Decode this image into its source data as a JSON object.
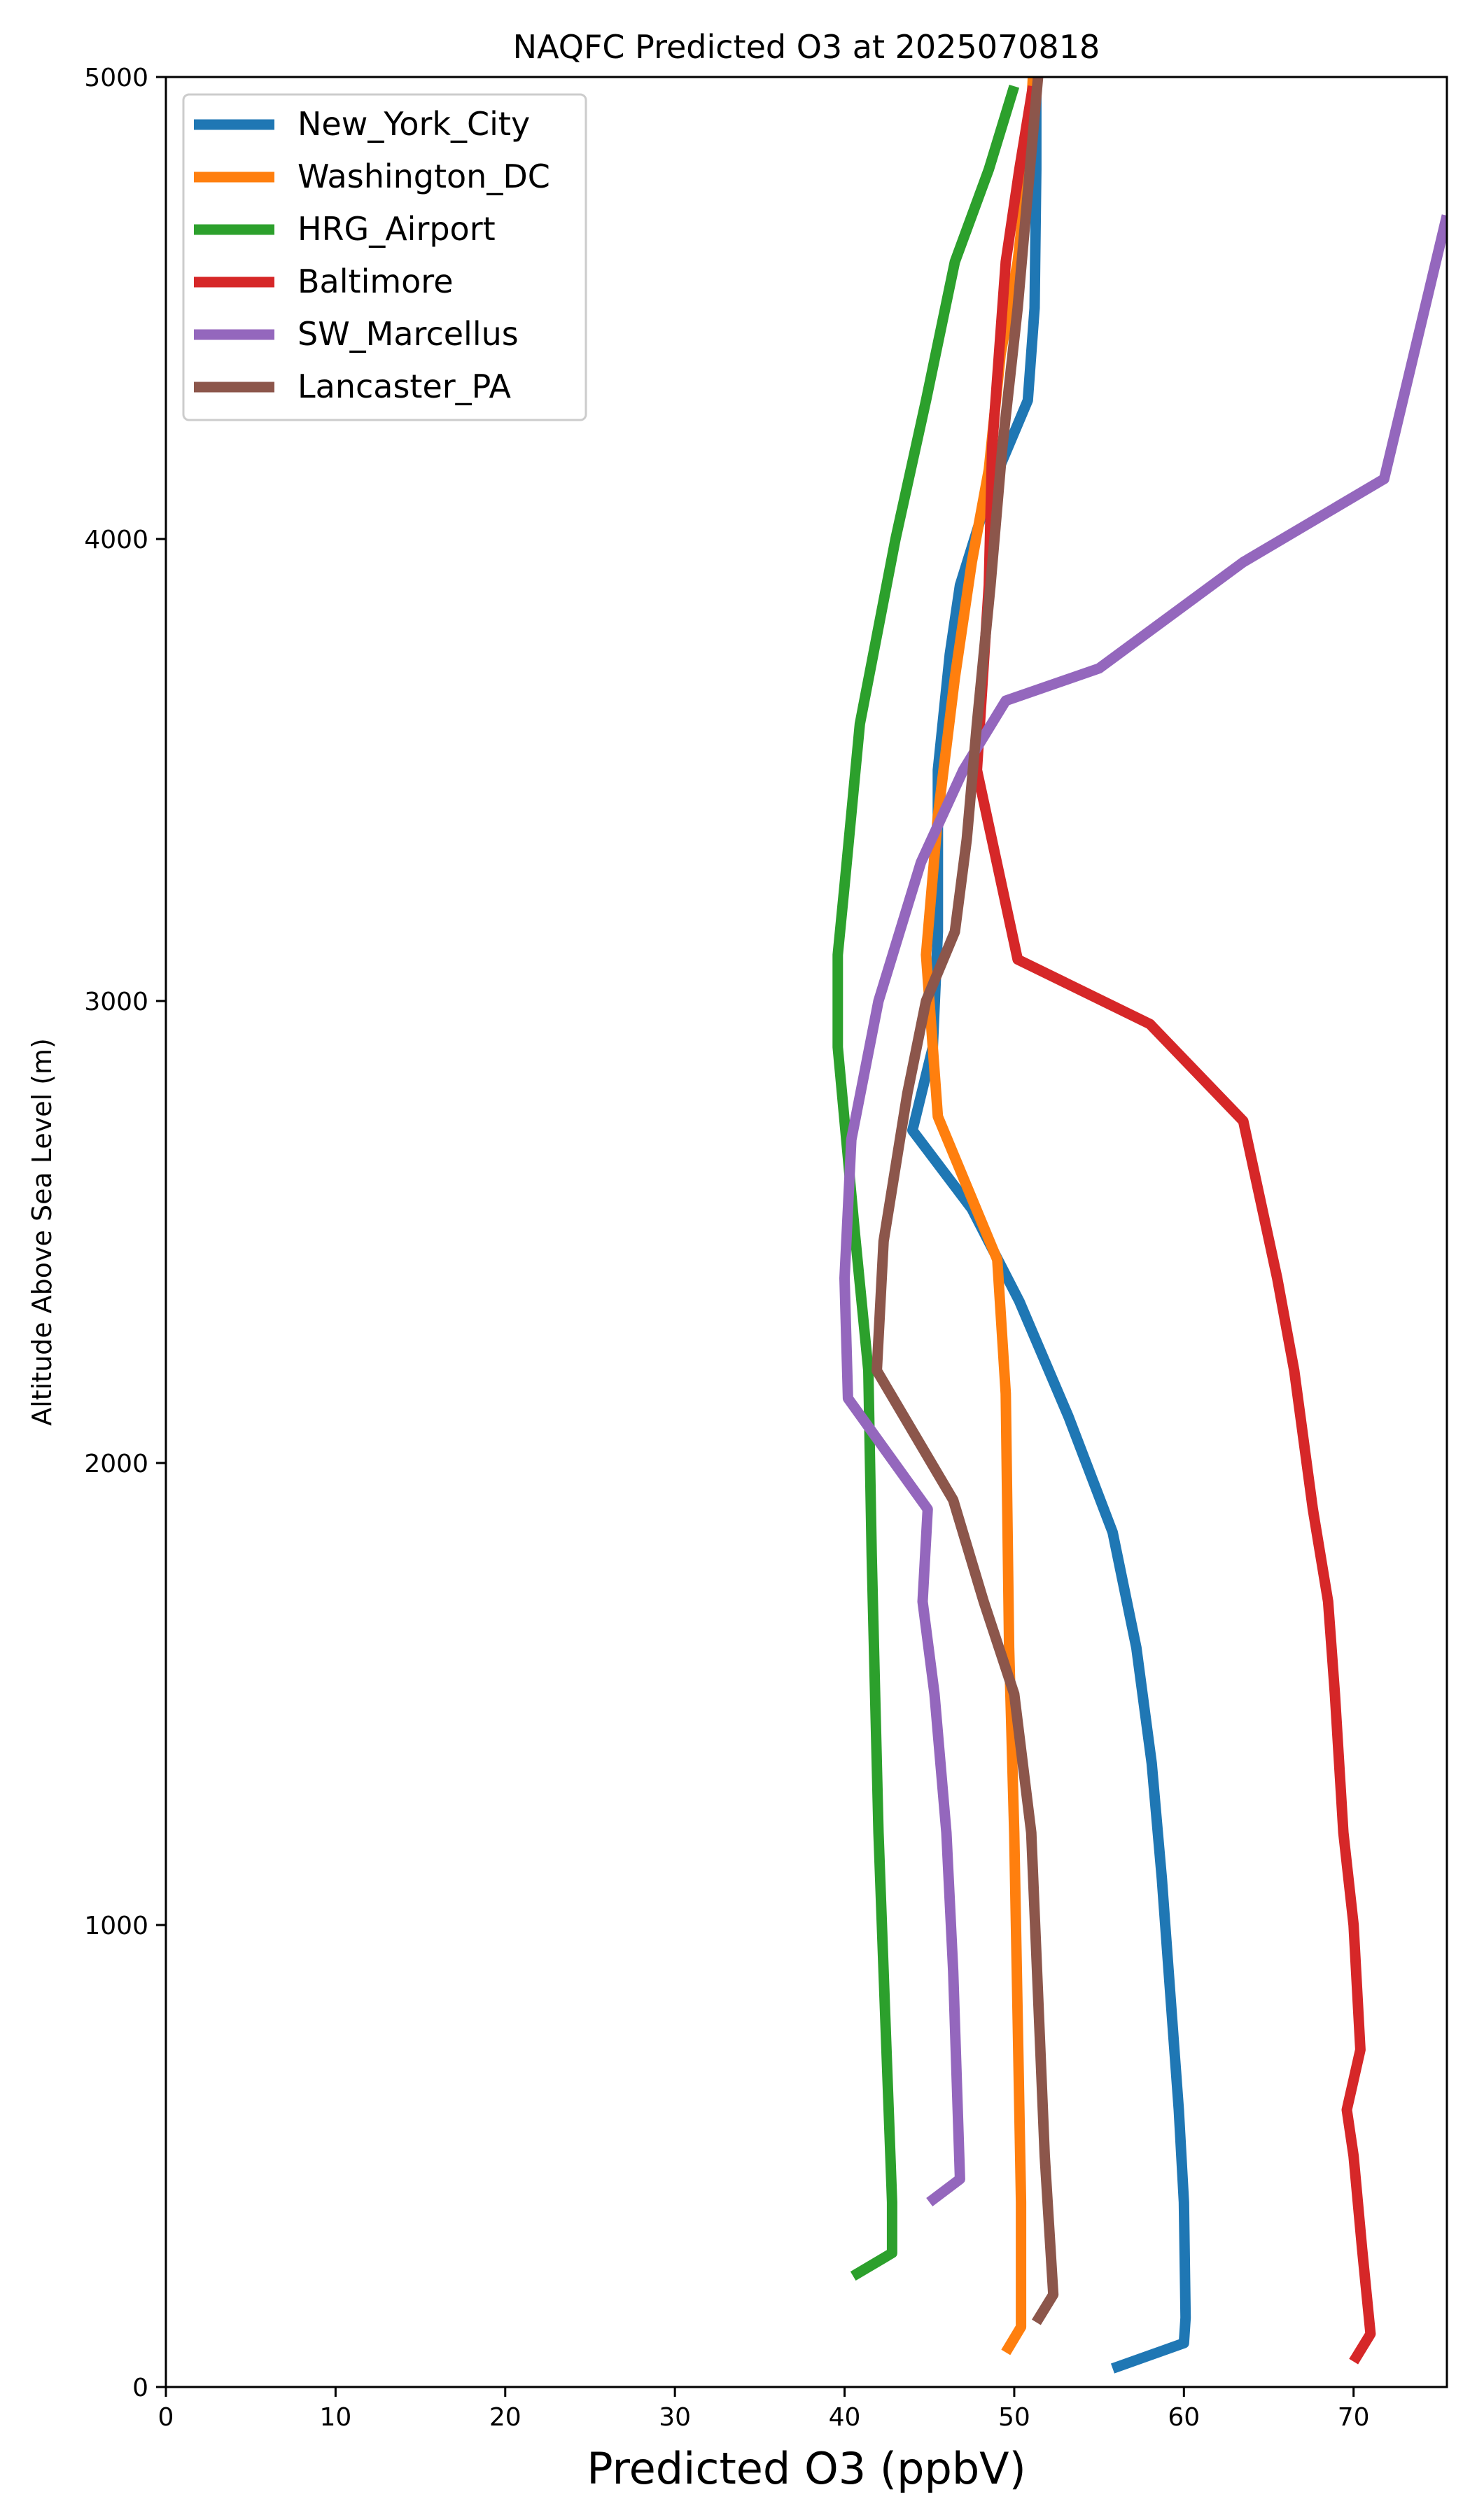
{
  "chart_data": {
    "type": "line",
    "title": "NAQFC Predicted O3 at 2025070818",
    "xlabel": "Predicted O3 (ppbV)",
    "ylabel": "Altitude Above Sea Level (m)",
    "xlim": [
      0,
      75.5
    ],
    "ylim": [
      0,
      5000
    ],
    "xticks": [
      0,
      10,
      20,
      30,
      40,
      50,
      60,
      70
    ],
    "yticks": [
      0,
      1000,
      2000,
      3000,
      4000,
      5000
    ],
    "grid": false,
    "legend_position": "upper-left",
    "series": [
      {
        "name": "New_York_City",
        "color": "#1f77b4",
        "points": [
          [
            55.8,
            40
          ],
          [
            60.0,
            95
          ],
          [
            60.1,
            150
          ],
          [
            60.0,
            400
          ],
          [
            59.7,
            600
          ],
          [
            59.3,
            800
          ],
          [
            58.7,
            1100
          ],
          [
            58.1,
            1350
          ],
          [
            57.2,
            1600
          ],
          [
            55.8,
            1850
          ],
          [
            53.2,
            2100
          ],
          [
            50.3,
            2350
          ],
          [
            47.5,
            2550
          ],
          [
            44.0,
            2720
          ],
          [
            45.2,
            2900
          ],
          [
            45.5,
            3150
          ],
          [
            45.5,
            3500
          ],
          [
            46.2,
            3750
          ],
          [
            46.8,
            3900
          ],
          [
            48.5,
            4100
          ],
          [
            50.8,
            4300
          ],
          [
            51.2,
            4500
          ],
          [
            51.3,
            4800
          ],
          [
            51.3,
            5000
          ]
        ]
      },
      {
        "name": "Washington_DC",
        "color": "#ff7f0e",
        "points": [
          [
            49.5,
            75
          ],
          [
            50.4,
            130
          ],
          [
            50.4,
            400
          ],
          [
            50.2,
            800
          ],
          [
            50.0,
            1200
          ],
          [
            49.7,
            1600
          ],
          [
            49.5,
            2150
          ],
          [
            49.0,
            2440
          ],
          [
            45.5,
            2750
          ],
          [
            44.8,
            3100
          ],
          [
            45.5,
            3400
          ],
          [
            46.5,
            3700
          ],
          [
            47.5,
            3950
          ],
          [
            48.5,
            4150
          ],
          [
            49.2,
            4400
          ],
          [
            50.2,
            4600
          ],
          [
            50.8,
            4800
          ],
          [
            51.1,
            5000
          ]
        ]
      },
      {
        "name": "HRG_Airport",
        "color": "#2ca02c",
        "points": [
          [
            40.5,
            240
          ],
          [
            42.8,
            290
          ],
          [
            42.8,
            400
          ],
          [
            42.5,
            700
          ],
          [
            42.0,
            1200
          ],
          [
            41.6,
            1800
          ],
          [
            41.4,
            2200
          ],
          [
            40.6,
            2500
          ],
          [
            39.6,
            2900
          ],
          [
            39.6,
            3100
          ],
          [
            40.0,
            3250
          ],
          [
            40.9,
            3600
          ],
          [
            43.0,
            4000
          ],
          [
            44.8,
            4300
          ],
          [
            46.5,
            4600
          ],
          [
            48.5,
            4800
          ],
          [
            50.0,
            4980
          ]
        ]
      },
      {
        "name": "Baltimore",
        "color": "#d62728",
        "points": [
          [
            70.0,
            55
          ],
          [
            71.0,
            115
          ],
          [
            70.5,
            300
          ],
          [
            70.0,
            500
          ],
          [
            69.6,
            600
          ],
          [
            70.4,
            730
          ],
          [
            70.0,
            1000
          ],
          [
            69.4,
            1200
          ],
          [
            68.9,
            1500
          ],
          [
            68.5,
            1700
          ],
          [
            67.6,
            1900
          ],
          [
            66.5,
            2200
          ],
          [
            65.5,
            2400
          ],
          [
            63.5,
            2740
          ],
          [
            58.0,
            2950
          ],
          [
            50.2,
            3090
          ],
          [
            47.8,
            3500
          ],
          [
            48.5,
            3900
          ],
          [
            48.7,
            4200
          ],
          [
            49.5,
            4600
          ],
          [
            50.3,
            4800
          ],
          [
            51.1,
            4980
          ]
        ]
      },
      {
        "name": "SW_Marcellus",
        "color": "#9467bd",
        "points": [
          [
            45.0,
            400
          ],
          [
            46.8,
            450
          ],
          [
            46.4,
            900
          ],
          [
            46.0,
            1200
          ],
          [
            45.3,
            1500
          ],
          [
            44.6,
            1700
          ],
          [
            44.9,
            1900
          ],
          [
            40.2,
            2140
          ],
          [
            40.0,
            2400
          ],
          [
            40.4,
            2700
          ],
          [
            42.0,
            3000
          ],
          [
            44.5,
            3300
          ],
          [
            47.0,
            3500
          ],
          [
            49.5,
            3650
          ],
          [
            55.0,
            3720
          ],
          [
            63.5,
            3950
          ],
          [
            71.8,
            4130
          ],
          [
            75.5,
            4700
          ]
        ]
      },
      {
        "name": "Lancaster_PA",
        "color": "#8c564b",
        "points": [
          [
            51.3,
            140
          ],
          [
            52.3,
            200
          ],
          [
            51.8,
            500
          ],
          [
            51.4,
            850
          ],
          [
            51.0,
            1200
          ],
          [
            50.0,
            1500
          ],
          [
            48.2,
            1700
          ],
          [
            46.4,
            1920
          ],
          [
            41.9,
            2200
          ],
          [
            42.3,
            2480
          ],
          [
            43.7,
            2800
          ],
          [
            44.8,
            3000
          ],
          [
            46.5,
            3150
          ],
          [
            47.2,
            3350
          ],
          [
            47.8,
            3600
          ],
          [
            48.6,
            3900
          ],
          [
            49.3,
            4200
          ],
          [
            50.2,
            4500
          ],
          [
            50.8,
            4750
          ],
          [
            51.4,
            5000
          ]
        ]
      }
    ]
  }
}
